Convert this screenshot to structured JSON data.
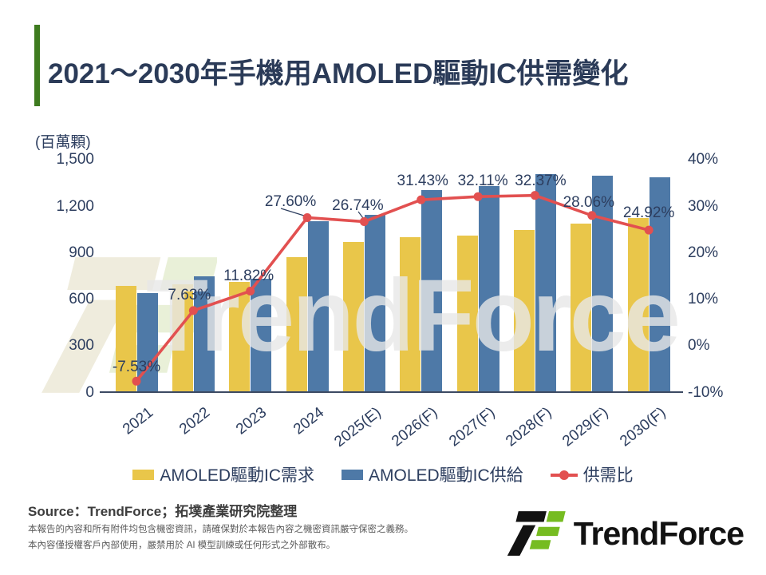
{
  "header": {
    "title": "2021～2030年手機用AMOLED驅動IC供需變化"
  },
  "chart_data": {
    "type": "combo-bar-line",
    "title": "2021～2030年手機用AMOLED驅動IC供需變化",
    "unit_label": "(百萬顆)",
    "categories": [
      "2021",
      "2022",
      "2023",
      "2024",
      "2025(E)",
      "2026(F)",
      "2027(F)",
      "2028(F)",
      "2029(F)",
      "2030(F)"
    ],
    "series": [
      {
        "name": "AMOLED驅動IC需求",
        "type": "bar",
        "color": "#e9c64a",
        "values": [
          690,
          700,
          715,
          875,
          970,
          1000,
          1010,
          1050,
          1090,
          1125
        ]
      },
      {
        "name": "AMOLED驅動IC供給",
        "type": "bar",
        "color": "#4e79a7",
        "values": [
          640,
          750,
          735,
          1105,
          1145,
          1305,
          1330,
          1410,
          1400,
          1390
        ]
      },
      {
        "name": "供需比",
        "type": "line",
        "color": "#e25050",
        "values": [
          -7.53,
          7.63,
          11.82,
          27.6,
          26.74,
          31.43,
          32.11,
          32.37,
          28.06,
          24.92
        ],
        "labels": [
          "-7.53%",
          "7.63%",
          "11.82%",
          "27.60%",
          "26.74%",
          "31.43%",
          "32.11%",
          "32.37%",
          "28.06%",
          "24.92%"
        ]
      }
    ],
    "left_axis": {
      "unit": "百萬顆",
      "ticks": [
        "1,500",
        "1,200",
        "900",
        "600",
        "300",
        "0"
      ],
      "values": [
        1500,
        1200,
        900,
        600,
        300,
        0
      ],
      "range": [
        0,
        1500
      ],
      "grid": false
    },
    "right_axis": {
      "unit": "%",
      "ticks": [
        "40%",
        "30%",
        "20%",
        "10%",
        "0%",
        "-10%"
      ],
      "values": [
        40,
        30,
        20,
        10,
        0,
        -10
      ],
      "range": [
        -10,
        40
      ]
    },
    "legend_position": "bottom"
  },
  "footer": {
    "source": "Source：TrendForce；拓墣產業研究院整理",
    "disclaimer1": "本報告的內容和所有附件均包含機密資訊，請確保對於本報告內容之機密資訊嚴守保密之義務。",
    "disclaimer2": "本內容僅授權客戶內部使用，嚴禁用於 AI 模型訓練或任何形式之外部散布。",
    "logo_text": "TrendForce"
  },
  "watermark": {
    "text": "TrendForce"
  },
  "colors": {
    "accent_green": "#3e7b1f",
    "title_navy": "#2b3b58",
    "demand_yellow": "#e9c64a",
    "supply_blue": "#4e79a7",
    "ratio_red": "#e25050",
    "logo_green": "#76bc21"
  }
}
